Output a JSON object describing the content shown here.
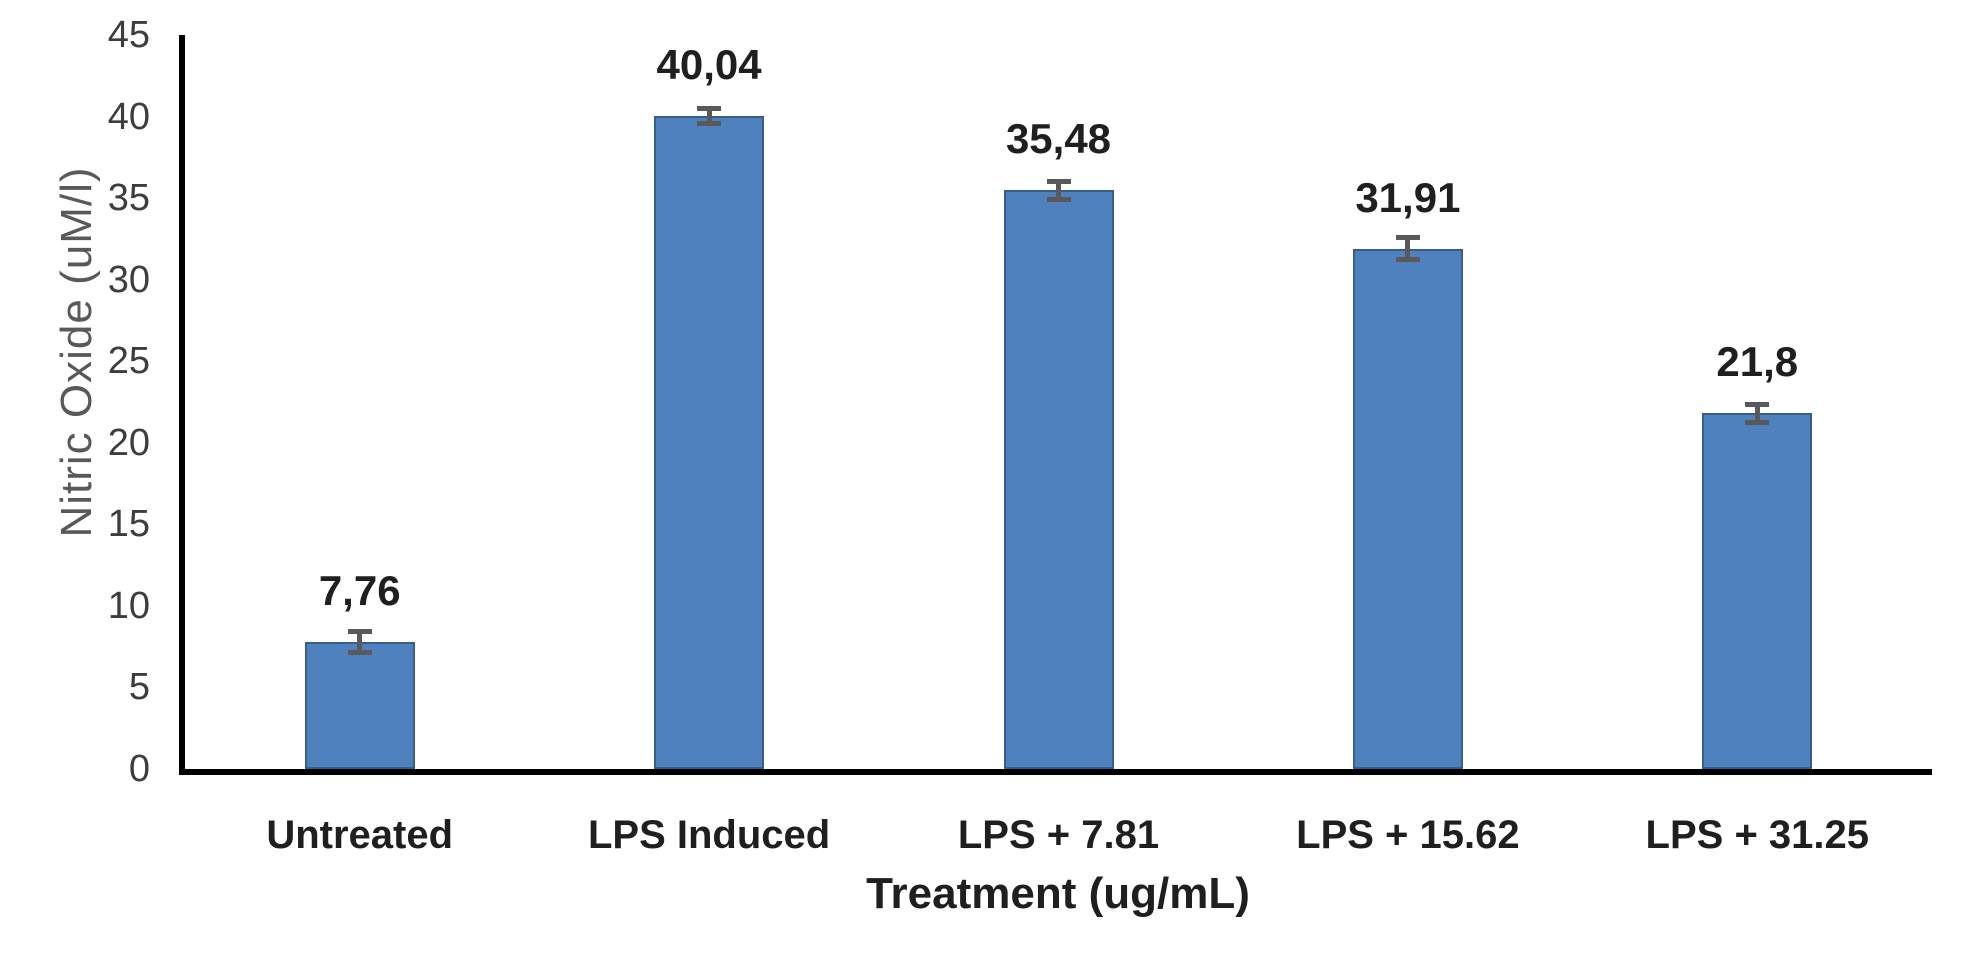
{
  "chart_data": {
    "type": "bar",
    "title": "",
    "xlabel": "Treatment (ug/mL)",
    "ylabel": "Nitric Oxide (uM/l)",
    "categories": [
      "Untreated",
      "LPS Induced",
      "LPS + 7.81",
      "LPS + 15.62",
      "LPS + 31.25"
    ],
    "values": [
      7.76,
      40.04,
      35.48,
      31.91,
      21.8
    ],
    "value_labels": [
      "7,76",
      "40,04",
      "35,48",
      "31,91",
      "21,8"
    ],
    "errors": [
      0.8,
      0.6,
      0.7,
      0.85,
      0.7
    ],
    "ylim": [
      0,
      45
    ],
    "yticks": [
      0,
      5,
      10,
      15,
      20,
      25,
      30,
      35,
      40,
      45
    ],
    "grid": false,
    "legend": false,
    "bar_color": "#4E81BD",
    "bar_border_color": "#385D8A",
    "error_bar_color": "#595959",
    "axis_color": "#000000",
    "tick_label_color": "#3d3d3d",
    "axis_title_color_y": "#595959",
    "label_color": "#1f1f1f"
  }
}
